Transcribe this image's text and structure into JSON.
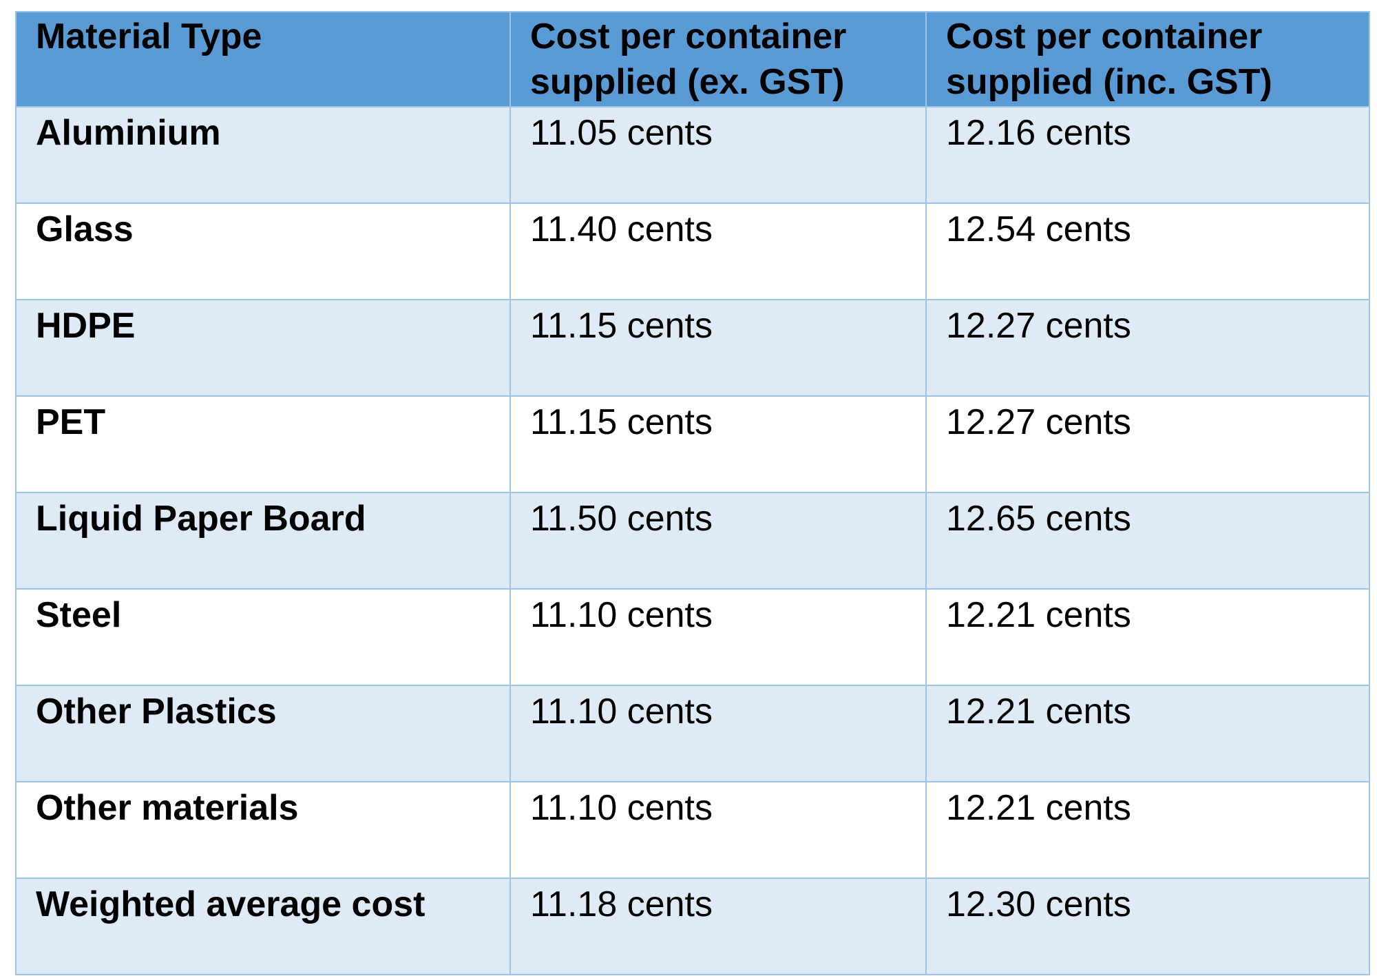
{
  "table": {
    "header": [
      "Material Type",
      "Cost per container supplied (ex. GST)",
      "Cost per container supplied (inc. GST)"
    ],
    "rows": [
      [
        "Aluminium",
        "11.05 cents",
        "12.16 cents"
      ],
      [
        "Glass",
        "11.40 cents",
        "12.54 cents"
      ],
      [
        "HDPE",
        "11.15 cents",
        "12.27 cents"
      ],
      [
        "PET",
        "11.15 cents",
        "12.27 cents"
      ],
      [
        "Liquid Paper Board",
        "11.50 cents",
        "12.65 cents"
      ],
      [
        "Steel",
        "11.10 cents",
        "12.21 cents"
      ],
      [
        "Other Plastics",
        "11.10 cents",
        "12.21 cents"
      ],
      [
        "Other materials",
        "11.10 cents",
        "12.21 cents"
      ],
      [
        "Weighted average cost",
        "11.18 cents",
        "12.30 cents"
      ]
    ]
  }
}
